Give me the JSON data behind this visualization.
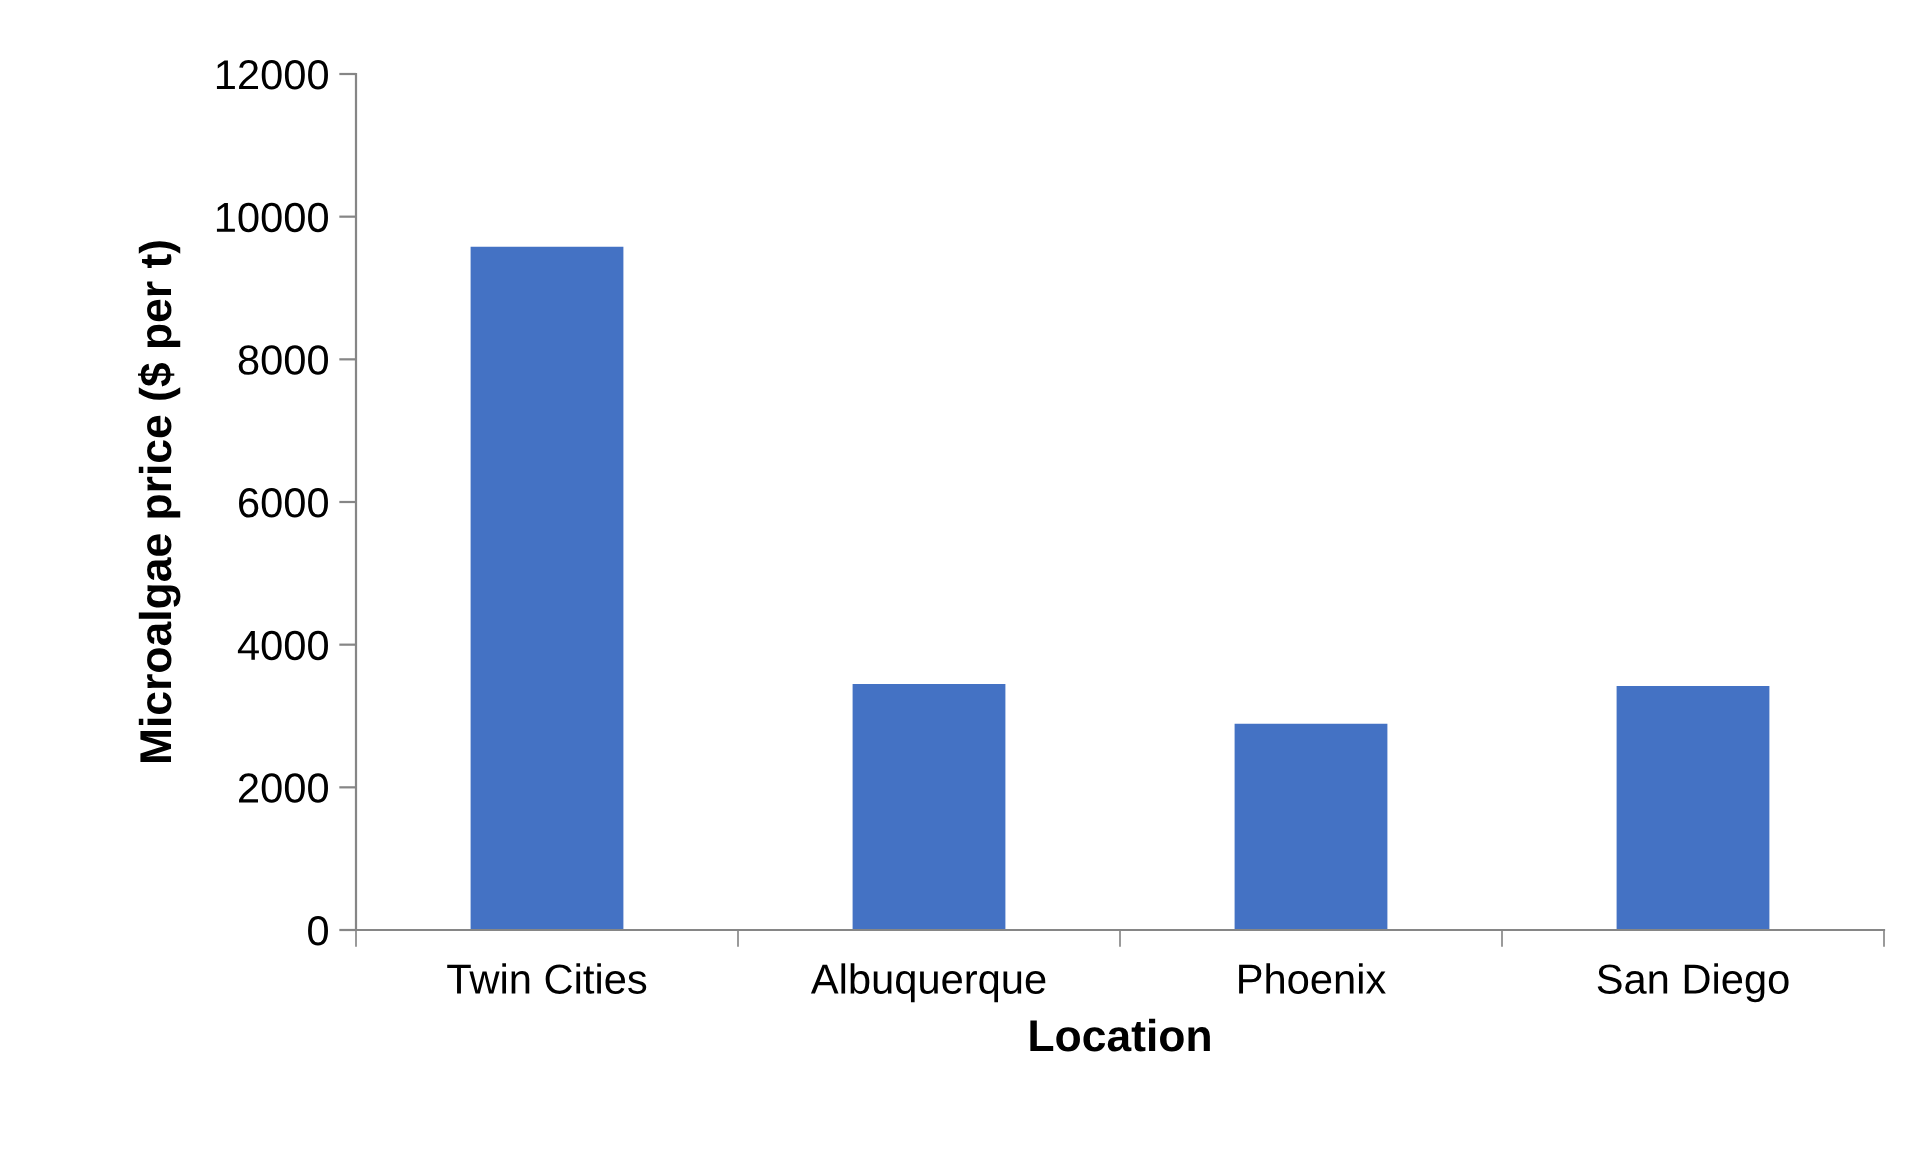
{
  "chart_data": {
    "type": "bar",
    "xlabel": "Location",
    "ylabel": "Microalgae price ($ per t)",
    "categories": [
      "Twin Cities",
      "Albuquerque",
      "Phoenix",
      "San Diego"
    ],
    "values": [
      9580,
      3450,
      2890,
      3420
    ],
    "color": "#4472c4",
    "ylim": [
      0,
      12000
    ],
    "yticks": [
      0,
      2000,
      4000,
      6000,
      8000,
      10000,
      12000
    ],
    "grid": false,
    "legend": false
  }
}
